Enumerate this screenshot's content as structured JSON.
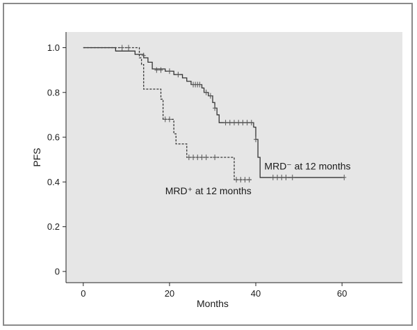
{
  "chart_data": {
    "type": "line",
    "xlabel": "Months",
    "ylabel": "PFS",
    "xlim": [
      -4,
      74
    ],
    "ylim": [
      -0.05,
      1.07
    ],
    "xticks": [
      0,
      20,
      40,
      60
    ],
    "yticks": [
      {
        "value": 0,
        "label": "0"
      },
      {
        "value": 0.2,
        "label": "0.2"
      },
      {
        "value": 0.4,
        "label": "0.4"
      },
      {
        "value": 0.6,
        "label": "0.6"
      },
      {
        "value": 0.8,
        "label": "0.8"
      },
      {
        "value": 1.0,
        "label": "1.0"
      }
    ],
    "grid": false,
    "background": "#e6e6e6",
    "series": [
      {
        "name": "MRD⁻ at 12 months",
        "style": "solid",
        "color": "#333333",
        "steps": [
          [
            0,
            1.0
          ],
          [
            7.5,
            0.985
          ],
          [
            12,
            0.97
          ],
          [
            14,
            0.955
          ],
          [
            15,
            0.935
          ],
          [
            16,
            0.905
          ],
          [
            19,
            0.895
          ],
          [
            21,
            0.88
          ],
          [
            23,
            0.865
          ],
          [
            24,
            0.85
          ],
          [
            25,
            0.835
          ],
          [
            27.5,
            0.82
          ],
          [
            28,
            0.8
          ],
          [
            29,
            0.785
          ],
          [
            30,
            0.755
          ],
          [
            30.5,
            0.73
          ],
          [
            31,
            0.7
          ],
          [
            31.5,
            0.665
          ],
          [
            39.5,
            0.645
          ],
          [
            40,
            0.59
          ],
          [
            40.5,
            0.51
          ],
          [
            41,
            0.42
          ],
          [
            60.5,
            0.42
          ]
        ],
        "censored": [
          [
            14,
            0.965
          ],
          [
            17,
            0.9
          ],
          [
            18,
            0.9
          ],
          [
            20,
            0.895
          ],
          [
            22,
            0.88
          ],
          [
            25.5,
            0.835
          ],
          [
            26,
            0.835
          ],
          [
            26.5,
            0.835
          ],
          [
            27,
            0.835
          ],
          [
            28.5,
            0.8
          ],
          [
            29.5,
            0.785
          ],
          [
            30.5,
            0.73
          ],
          [
            33,
            0.665
          ],
          [
            34,
            0.665
          ],
          [
            35,
            0.665
          ],
          [
            36,
            0.665
          ],
          [
            37,
            0.665
          ],
          [
            38,
            0.665
          ],
          [
            39,
            0.665
          ],
          [
            40,
            0.59
          ],
          [
            44,
            0.42
          ],
          [
            45,
            0.42
          ],
          [
            46,
            0.42
          ],
          [
            47,
            0.42
          ],
          [
            48.5,
            0.42
          ],
          [
            60.5,
            0.42
          ]
        ],
        "annotation": {
          "text": "MRD⁻ at 12 months",
          "x": 42,
          "y": 0.455
        }
      },
      {
        "name": "MRD⁺ at 12 months",
        "style": "dashed",
        "color": "#333333",
        "steps": [
          [
            0,
            1.0
          ],
          [
            12,
            1.0
          ],
          [
            13,
            0.955
          ],
          [
            13.5,
            0.925
          ],
          [
            14,
            0.815
          ],
          [
            18,
            0.77
          ],
          [
            18.5,
            0.68
          ],
          [
            21,
            0.615
          ],
          [
            21.5,
            0.57
          ],
          [
            24,
            0.51
          ],
          [
            35,
            0.41
          ],
          [
            39,
            0.41
          ]
        ],
        "censored": [
          [
            9,
            1.0
          ],
          [
            10.5,
            1.0
          ],
          [
            19,
            0.68
          ],
          [
            20,
            0.68
          ],
          [
            24.5,
            0.51
          ],
          [
            25.5,
            0.51
          ],
          [
            26.5,
            0.51
          ],
          [
            27.5,
            0.51
          ],
          [
            28.5,
            0.51
          ],
          [
            30.5,
            0.51
          ],
          [
            35.5,
            0.41
          ],
          [
            36.5,
            0.41
          ],
          [
            37.5,
            0.41
          ],
          [
            38.5,
            0.41
          ]
        ],
        "annotation": {
          "text": "MRD⁺ at 12 months",
          "x": 19,
          "y": 0.345
        }
      }
    ]
  }
}
